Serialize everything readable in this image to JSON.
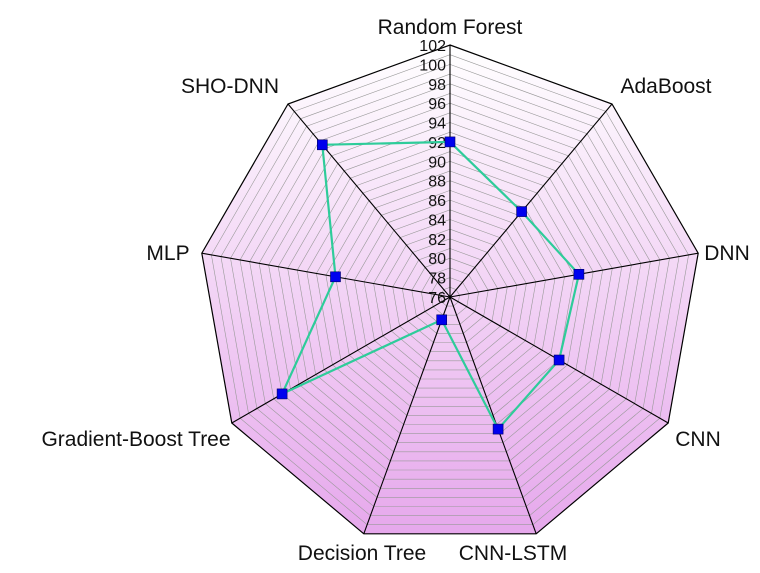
{
  "chart_data": {
    "type": "radar",
    "categories": [
      "Random Forest",
      "AdaBoost",
      "DNN",
      "CNN",
      "CNN-LSTM",
      "Decision Tree",
      "Gradient-Boost Tree",
      "MLP",
      "SHO-DNN"
    ],
    "highlight_category": "SHO-DNN",
    "values": [
      92.0,
      87.5,
      89.5,
      89.0,
      90.5,
      78.5,
      96.0,
      88.0,
      96.5
    ],
    "rlim": [
      76,
      102
    ],
    "ticks": [
      "76",
      "78",
      "80",
      "82",
      "84",
      "86",
      "88",
      "90",
      "92",
      "94",
      "96",
      "98",
      "100",
      "102"
    ],
    "tick_values": [
      76,
      78,
      80,
      82,
      84,
      86,
      88,
      90,
      92,
      94,
      96,
      98,
      100,
      102
    ],
    "grid": true,
    "colors": {
      "line": "#2ecc9a",
      "marker": "#0000ee",
      "highlight_label": "#e02020",
      "fill_inner": "#ffffff",
      "fill_outer": "#e6a8ec",
      "spoke": "#000000",
      "grid": "#999999"
    }
  }
}
